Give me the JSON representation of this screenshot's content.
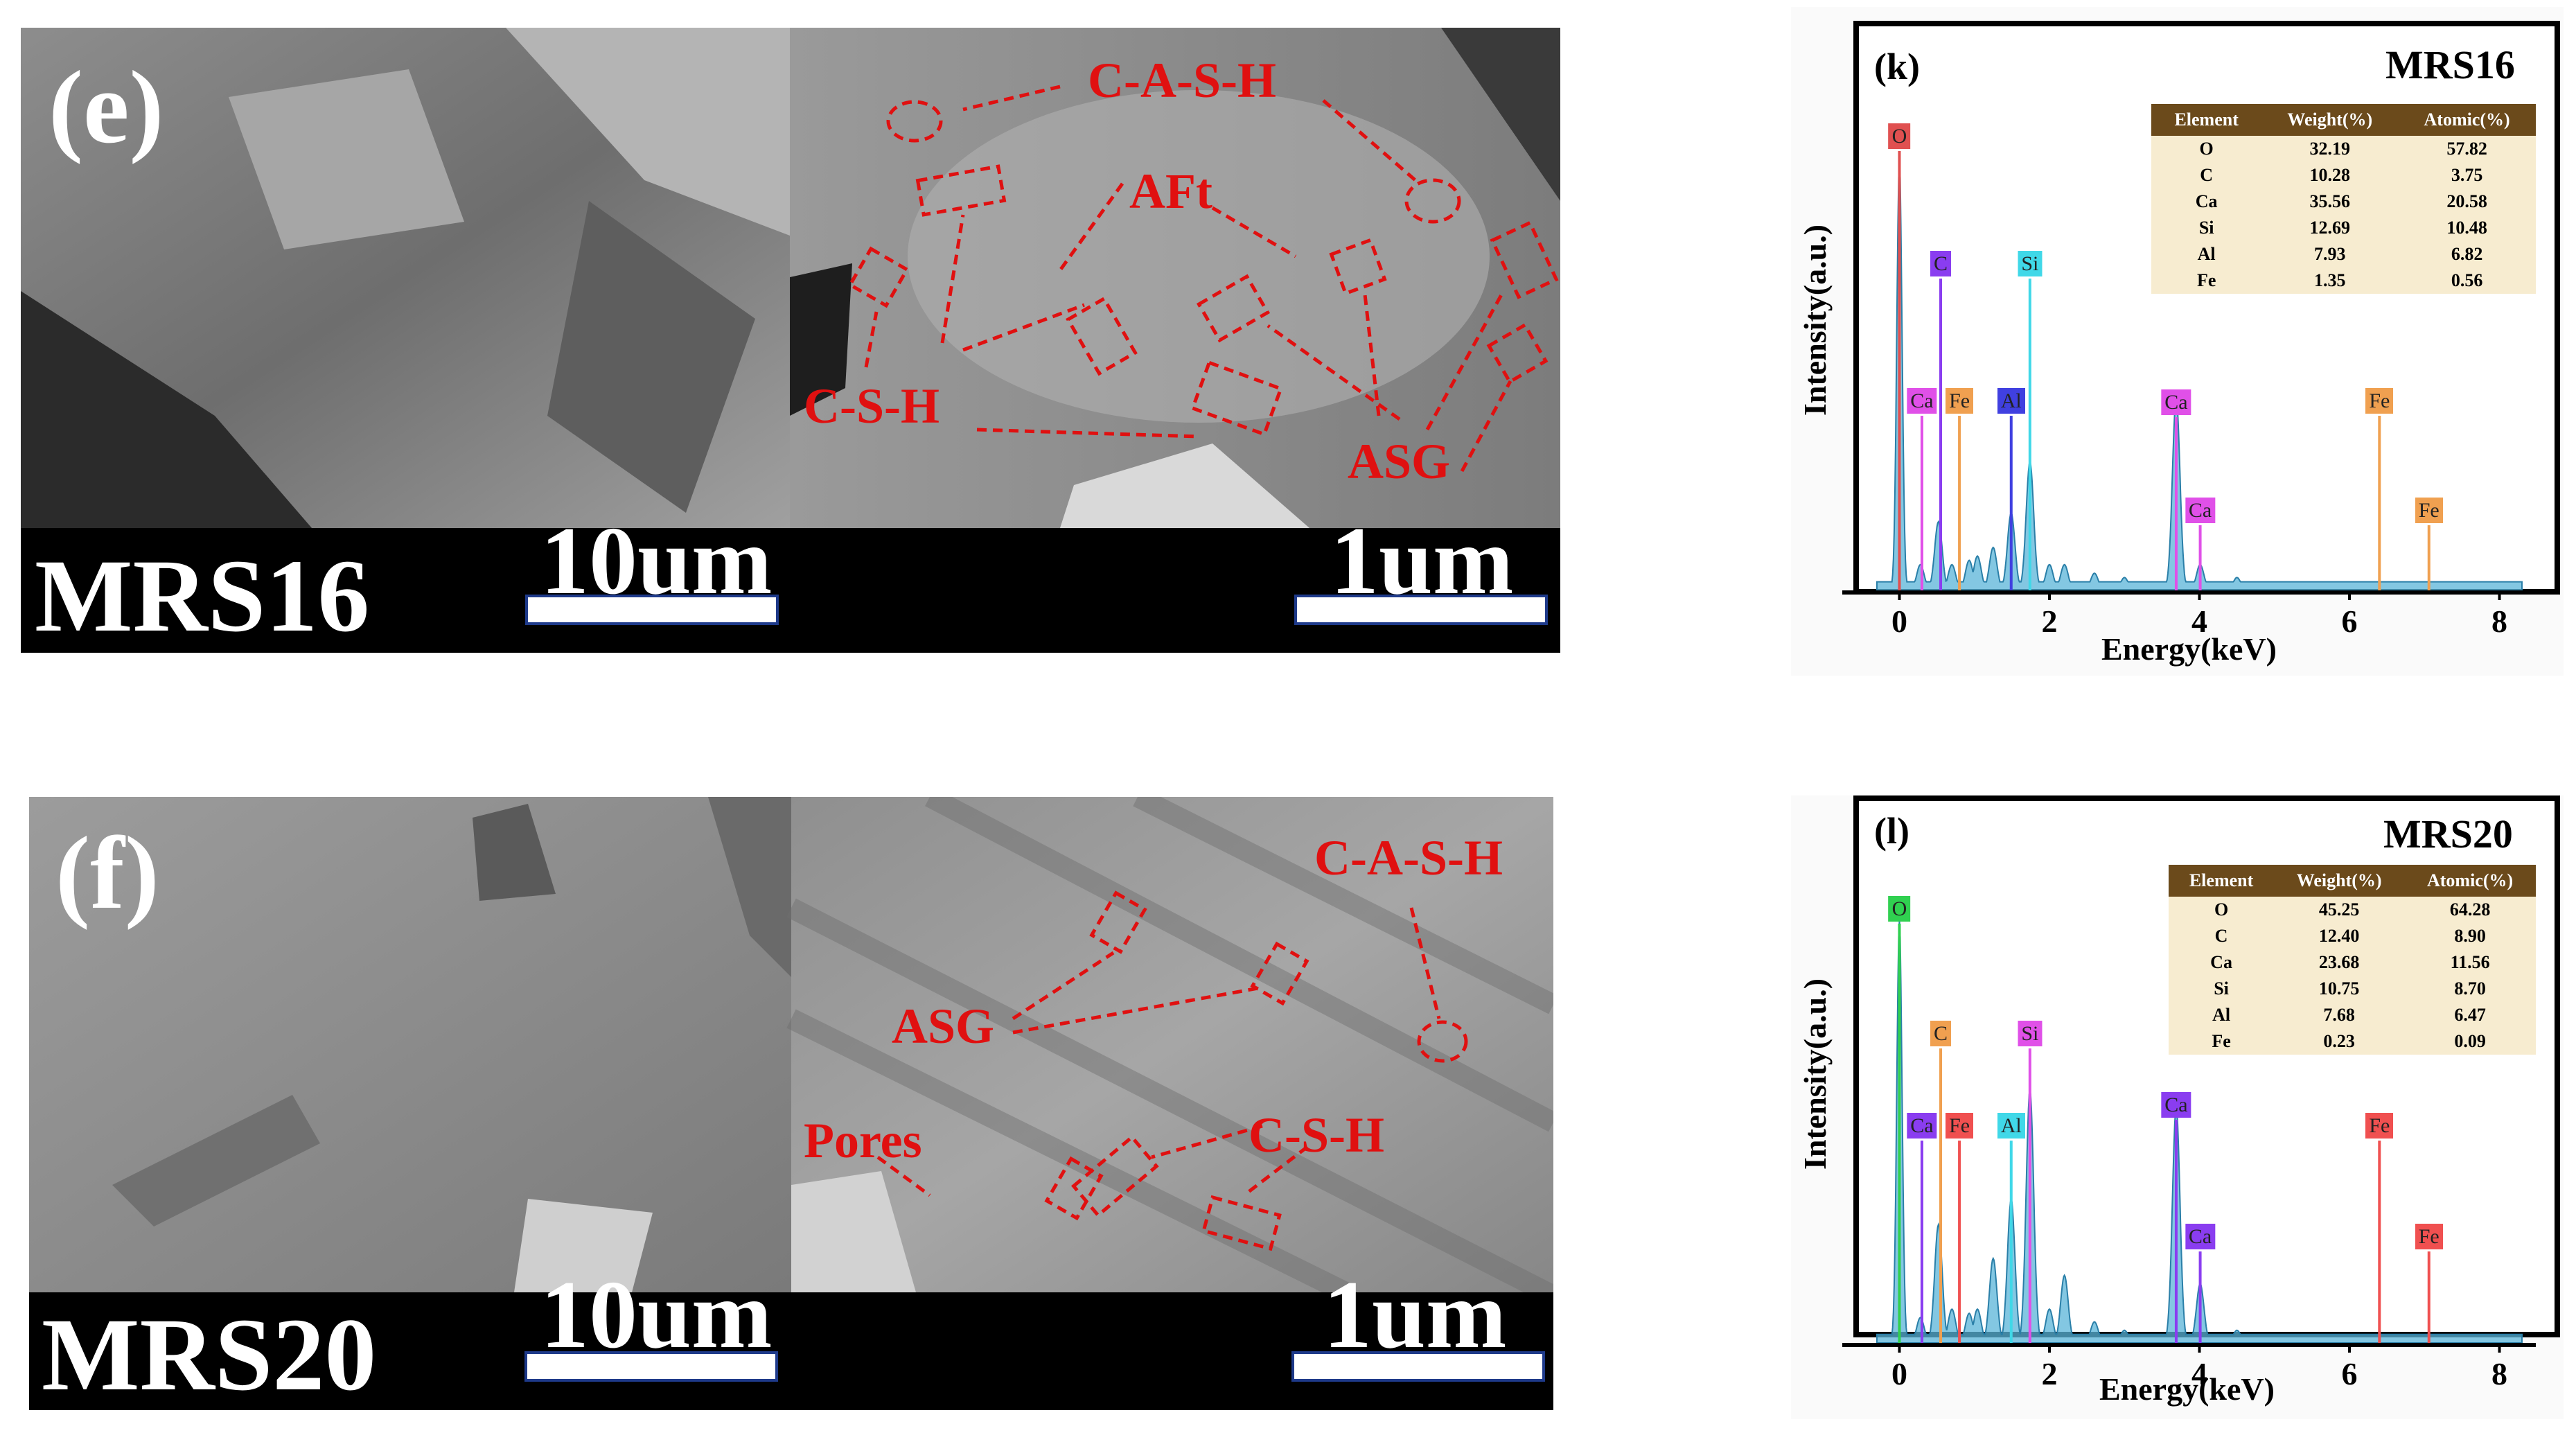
{
  "sem_panels": [
    {
      "letter": "(e)",
      "sample": "MRS16",
      "scale_low": "10um",
      "scale_high": "1um",
      "annotations": [
        "C-A-S-H",
        "AFt",
        "C-S-H",
        "ASG"
      ]
    },
    {
      "letter": "(f)",
      "sample": "MRS20",
      "scale_low": "10um",
      "scale_high": "1um",
      "annotations": [
        "C-A-S-H",
        "ASG",
        "Pores",
        "C-S-H"
      ]
    }
  ],
  "eds_panels": [
    {
      "letter": "(k)",
      "sample": "MRS16",
      "ylabel": "Intensity(a.u.)",
      "xlabel": "Energy(keV)",
      "table": {
        "headers": [
          "Element",
          "Weight(%)",
          "Atomic(%)"
        ],
        "rows": [
          [
            "O",
            "32.19",
            "57.82"
          ],
          [
            "C",
            "10.28",
            "3.75"
          ],
          [
            "Ca",
            "35.56",
            "20.58"
          ],
          [
            "Si",
            "12.69",
            "10.48"
          ],
          [
            "Al",
            "7.93",
            "6.82"
          ],
          [
            "Fe",
            "1.35",
            "0.56"
          ]
        ]
      },
      "peak_labels": [
        {
          "text": "O",
          "energy": 0.0,
          "color": "#e05050"
        },
        {
          "text": "C",
          "energy": 0.55,
          "color": "#8a3df0"
        },
        {
          "text": "Si",
          "energy": 1.74,
          "color": "#40d8e8"
        },
        {
          "text": "Ca",
          "energy": 0.3,
          "color": "#e050e8"
        },
        {
          "text": "Fe",
          "energy": 0.8,
          "color": "#f0a050"
        },
        {
          "text": "Al",
          "energy": 1.49,
          "color": "#4040e0"
        },
        {
          "text": "Ca",
          "energy": 3.69,
          "color": "#e050e8"
        },
        {
          "text": "Fe",
          "energy": 6.4,
          "color": "#f0a050"
        },
        {
          "text": "Ca",
          "energy": 4.01,
          "color": "#e050e8"
        },
        {
          "text": "Fe",
          "energy": 7.06,
          "color": "#f0a050"
        }
      ]
    },
    {
      "letter": "(l)",
      "sample": "MRS20",
      "ylabel": "Intensity(a.u.)",
      "xlabel": "Energy(keV)",
      "table": {
        "headers": [
          "Element",
          "Weight(%)",
          "Atomic(%)"
        ],
        "rows": [
          [
            "O",
            "45.25",
            "64.28"
          ],
          [
            "C",
            "12.40",
            "8.90"
          ],
          [
            "Ca",
            "23.68",
            "11.56"
          ],
          [
            "Si",
            "10.75",
            "8.70"
          ],
          [
            "Al",
            "7.68",
            "6.47"
          ],
          [
            "Fe",
            "0.23",
            "0.09"
          ]
        ]
      },
      "peak_labels": [
        {
          "text": "O",
          "energy": 0.0,
          "color": "#30d050"
        },
        {
          "text": "C",
          "energy": 0.55,
          "color": "#f0a050"
        },
        {
          "text": "Si",
          "energy": 1.74,
          "color": "#e050e8"
        },
        {
          "text": "Ca",
          "energy": 0.3,
          "color": "#8a3df0"
        },
        {
          "text": "Fe",
          "energy": 0.8,
          "color": "#f05050"
        },
        {
          "text": "Al",
          "energy": 1.49,
          "color": "#40d8e8"
        },
        {
          "text": "Ca",
          "energy": 3.69,
          "color": "#8a3df0"
        },
        {
          "text": "Fe",
          "energy": 6.4,
          "color": "#f05050"
        },
        {
          "text": "Ca",
          "energy": 4.01,
          "color": "#8a3df0"
        },
        {
          "text": "Fe",
          "energy": 7.06,
          "color": "#f05050"
        }
      ]
    }
  ],
  "chart_data": [
    {
      "type": "line",
      "title": "MRS16",
      "xlabel": "Energy(keV)",
      "ylabel": "Intensity(a.u.)",
      "xlim": [
        -0.3,
        8.3
      ],
      "x_ticks": [
        0,
        2,
        4,
        6,
        8
      ],
      "series": [
        {
          "x": [
            0.0,
            0.28,
            0.52,
            0.7,
            0.93,
            1.04,
            1.25,
            1.49,
            1.74,
            2.0,
            2.2,
            2.6,
            3.0,
            3.69,
            4.01,
            4.5,
            5.5,
            6.4,
            7.06,
            8.0
          ],
          "values": [
            1.0,
            0.06,
            0.16,
            0.06,
            0.07,
            0.08,
            0.1,
            0.18,
            0.3,
            0.06,
            0.06,
            0.04,
            0.03,
            0.45,
            0.06,
            0.03,
            0.02,
            0.02,
            0.02,
            0.02
          ]
        }
      ]
    },
    {
      "type": "line",
      "title": "MRS20",
      "xlabel": "Energy(keV)",
      "ylabel": "Intensity(a.u.)",
      "xlim": [
        -0.3,
        8.3
      ],
      "x_ticks": [
        0,
        2,
        4,
        6,
        8
      ],
      "series": [
        {
          "x": [
            0.0,
            0.28,
            0.52,
            0.7,
            0.93,
            1.04,
            1.25,
            1.49,
            1.74,
            2.0,
            2.2,
            2.6,
            3.0,
            3.69,
            4.01,
            4.5,
            5.5,
            6.4,
            7.06,
            8.0
          ],
          "values": [
            1.0,
            0.06,
            0.28,
            0.08,
            0.07,
            0.08,
            0.2,
            0.34,
            0.6,
            0.08,
            0.16,
            0.05,
            0.03,
            0.56,
            0.14,
            0.03,
            0.02,
            0.02,
            0.02,
            0.02
          ]
        }
      ]
    }
  ]
}
